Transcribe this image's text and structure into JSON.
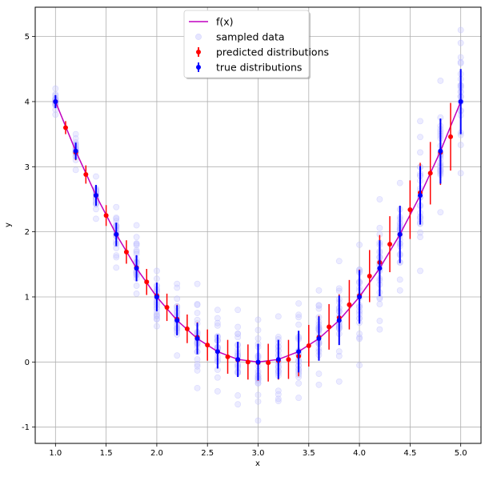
{
  "chart_data": {
    "type": "scatter",
    "xlabel": "x",
    "ylabel": "y",
    "xlim": [
      0.8,
      5.2
    ],
    "ylim": [
      -1.25,
      5.45
    ],
    "grid": true,
    "legend_position": "top-center",
    "x_ticks": [
      "1.0",
      "1.5",
      "2.0",
      "2.5",
      "3.0",
      "3.5",
      "4.0",
      "4.5",
      "5.0"
    ],
    "y_ticks": [
      "-1",
      "0",
      "1",
      "2",
      "3",
      "4",
      "5"
    ],
    "legend": [
      {
        "label": "f(x)",
        "kind": "line",
        "color": "#c000c0"
      },
      {
        "label": "sampled data",
        "kind": "scatter",
        "color": "#c8c8ff"
      },
      {
        "label": "predicted distributions",
        "kind": "errorbar",
        "color": "#ff0000"
      },
      {
        "label": "true distributions",
        "kind": "errorbar",
        "color": "#0000ff"
      }
    ],
    "line": {
      "name": "f(x)",
      "x": [
        1.0,
        1.2,
        1.4,
        1.6,
        1.8,
        2.0,
        2.2,
        2.4,
        2.6,
        2.8,
        3.0,
        3.2,
        3.4,
        3.6,
        3.8,
        4.0,
        4.2,
        4.4,
        4.6,
        4.8,
        5.0
      ],
      "y": [
        4.0,
        3.24,
        2.56,
        1.96,
        1.44,
        1.0,
        0.64,
        0.36,
        0.16,
        0.04,
        0.0,
        0.04,
        0.16,
        0.36,
        0.64,
        1.0,
        1.44,
        1.96,
        2.56,
        3.24,
        4.0
      ]
    },
    "predicted": {
      "name": "predicted distributions",
      "x": [
        1.0,
        1.1,
        1.2,
        1.3,
        1.4,
        1.5,
        1.6,
        1.7,
        1.8,
        1.9,
        2.0,
        2.1,
        2.2,
        2.3,
        2.4,
        2.5,
        2.6,
        2.7,
        2.8,
        2.9,
        3.0,
        3.1,
        3.2,
        3.3,
        3.4,
        3.5,
        3.6,
        3.7,
        3.8,
        3.9,
        4.0,
        4.1,
        4.2,
        4.3,
        4.4,
        4.5,
        4.6,
        4.7,
        4.8,
        4.9
      ],
      "y": [
        4.0,
        3.6,
        3.22,
        2.88,
        2.56,
        2.25,
        1.96,
        1.69,
        1.45,
        1.23,
        1.02,
        0.84,
        0.66,
        0.51,
        0.38,
        0.26,
        0.16,
        0.08,
        0.03,
        0.0,
        -0.01,
        -0.01,
        0.02,
        0.04,
        0.09,
        0.25,
        0.38,
        0.54,
        0.68,
        0.88,
        1.02,
        1.32,
        1.53,
        1.81,
        1.96,
        2.34,
        2.6,
        2.9,
        3.22,
        3.46
      ],
      "err": [
        0.08,
        0.1,
        0.12,
        0.14,
        0.15,
        0.16,
        0.17,
        0.18,
        0.19,
        0.2,
        0.2,
        0.21,
        0.22,
        0.22,
        0.23,
        0.24,
        0.25,
        0.26,
        0.26,
        0.27,
        0.28,
        0.29,
        0.29,
        0.3,
        0.31,
        0.32,
        0.33,
        0.35,
        0.36,
        0.38,
        0.4,
        0.4,
        0.42,
        0.43,
        0.44,
        0.45,
        0.46,
        0.48,
        0.5,
        0.52
      ]
    },
    "true": {
      "name": "true distributions",
      "x": [
        1.0,
        1.2,
        1.4,
        1.6,
        1.8,
        2.0,
        2.2,
        2.4,
        2.6,
        2.8,
        3.0,
        3.2,
        3.4,
        3.6,
        3.8,
        4.0,
        4.2,
        4.4,
        4.6,
        4.8,
        5.0
      ],
      "y": [
        4.0,
        3.24,
        2.56,
        1.96,
        1.44,
        1.0,
        0.64,
        0.36,
        0.16,
        0.04,
        0.0,
        0.04,
        0.16,
        0.36,
        0.64,
        1.0,
        1.44,
        1.96,
        2.56,
        3.24,
        4.0
      ],
      "err": [
        0.1,
        0.13,
        0.16,
        0.18,
        0.2,
        0.22,
        0.23,
        0.24,
        0.26,
        0.27,
        0.28,
        0.3,
        0.32,
        0.34,
        0.38,
        0.41,
        0.43,
        0.44,
        0.45,
        0.5,
        0.5
      ]
    },
    "sampled": {
      "name": "sampled data",
      "points_per_x": 25,
      "x": [
        1.0,
        1.2,
        1.4,
        1.6,
        1.8,
        2.0,
        2.2,
        2.4,
        2.6,
        2.8,
        3.0,
        3.2,
        3.4,
        3.6,
        3.8,
        4.0,
        4.2,
        4.4,
        4.6,
        4.8,
        5.0
      ],
      "y_min": [
        3.8,
        2.95,
        2.2,
        1.45,
        1.05,
        0.55,
        0.1,
        -0.4,
        -0.45,
        -0.65,
        -0.9,
        -0.6,
        -0.55,
        -0.35,
        -0.3,
        -0.05,
        0.5,
        1.1,
        1.4,
        2.3,
        2.9
      ],
      "y_max": [
        4.2,
        3.5,
        2.85,
        2.38,
        2.1,
        1.4,
        1.2,
        1.2,
        0.8,
        0.8,
        0.65,
        0.7,
        0.9,
        1.1,
        1.55,
        1.8,
        2.5,
        2.75,
        3.7,
        4.32,
        5.1
      ]
    }
  }
}
